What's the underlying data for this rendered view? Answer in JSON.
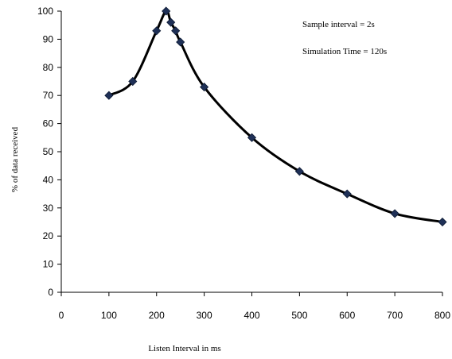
{
  "chart_data": {
    "type": "line",
    "title": "",
    "xlabel": "Listen Interval in ms",
    "ylabel": "% of data received",
    "xlim": [
      0,
      800
    ],
    "ylim": [
      0,
      100
    ],
    "x_ticks": [
      0,
      100,
      200,
      300,
      400,
      500,
      600,
      700,
      800
    ],
    "y_ticks": [
      0,
      10,
      20,
      30,
      40,
      50,
      60,
      70,
      80,
      90,
      100
    ],
    "grid": false,
    "smooth": true,
    "series": [
      {
        "x": [
          100,
          150,
          200,
          220,
          230,
          240,
          250,
          300,
          400,
          500,
          600,
          700,
          800
        ],
        "values": [
          70,
          75,
          93,
          100,
          96,
          93,
          89,
          73,
          55,
          43,
          35,
          28,
          25
        ]
      }
    ],
    "annotations": [
      "Sample interval = 2s",
      "Simulation Time = 120s"
    ],
    "colors": {
      "line": "#000000",
      "marker": "#1f3057"
    }
  }
}
